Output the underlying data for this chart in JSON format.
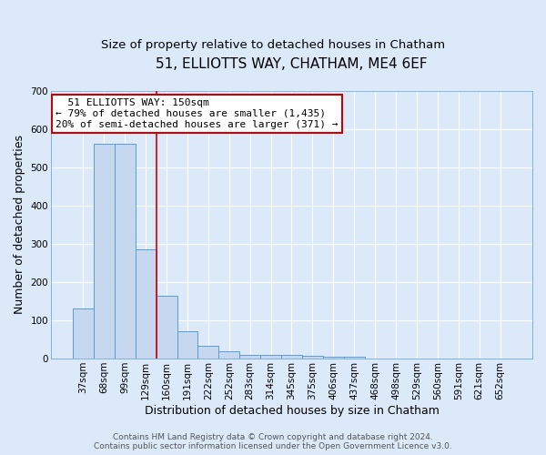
{
  "title1": "51, ELLIOTTS WAY, CHATHAM, ME4 6EF",
  "title2": "Size of property relative to detached houses in Chatham",
  "xlabel": "Distribution of detached houses by size in Chatham",
  "ylabel": "Number of detached properties",
  "footer1": "Contains HM Land Registry data © Crown copyright and database right 2024.",
  "footer2": "Contains public sector information licensed under the Open Government Licence v3.0.",
  "annotation_line1": "  51 ELLIOTTS WAY: 150sqm",
  "annotation_line2": "← 79% of detached houses are smaller (1,435)",
  "annotation_line3": "20% of semi-detached houses are larger (371) →",
  "bar_labels": [
    "37sqm",
    "68sqm",
    "99sqm",
    "129sqm",
    "160sqm",
    "191sqm",
    "222sqm",
    "252sqm",
    "283sqm",
    "314sqm",
    "345sqm",
    "375sqm",
    "406sqm",
    "437sqm",
    "468sqm",
    "498sqm",
    "529sqm",
    "560sqm",
    "591sqm",
    "621sqm",
    "652sqm"
  ],
  "bar_values": [
    130,
    560,
    560,
    285,
    165,
    72,
    33,
    20,
    10,
    10,
    10,
    8,
    5,
    5,
    0,
    0,
    0,
    0,
    0,
    0,
    0
  ],
  "bar_color": "#c5d8f0",
  "bar_edge_color": "#5b9bd5",
  "red_line_color": "#cc0000",
  "background_color": "#dce9f8",
  "grid_color": "#ffffff",
  "ylim": [
    0,
    700
  ],
  "yticks": [
    0,
    100,
    200,
    300,
    400,
    500,
    600,
    700
  ],
  "annotation_box_color": "#ffffff",
  "annotation_box_edge": "#cc0000",
  "title1_fontsize": 11,
  "title2_fontsize": 9.5,
  "axis_label_fontsize": 9,
  "tick_fontsize": 7.5,
  "annotation_fontsize": 8,
  "footer_fontsize": 6.5
}
